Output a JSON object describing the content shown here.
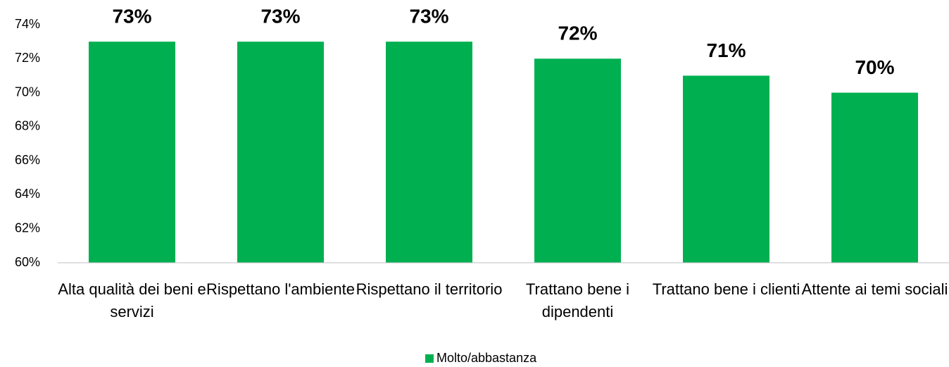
{
  "chart_data": {
    "type": "bar",
    "categories": [
      "Alta qualità dei beni e servizi",
      "Rispettano l'ambiente",
      "Rispettano il territorio",
      "Trattano bene i dipendenti",
      "Trattano bene i clienti",
      "Attente ai temi sociali"
    ],
    "series": [
      {
        "name": "Molto/abbastanza",
        "color": "#00b050",
        "values": [
          73,
          73,
          73,
          72,
          71,
          70
        ],
        "value_labels": [
          "73%",
          "73%",
          "73%",
          "72%",
          "71%",
          "70%"
        ]
      }
    ],
    "ylim": [
      60,
      74
    ],
    "yticks": [
      {
        "value": 60,
        "label": "60%"
      },
      {
        "value": 62,
        "label": "62%"
      },
      {
        "value": 64,
        "label": "64%"
      },
      {
        "value": 66,
        "label": "66%"
      },
      {
        "value": 68,
        "label": "68%"
      },
      {
        "value": 70,
        "label": "70%"
      },
      {
        "value": 72,
        "label": "72%"
      },
      {
        "value": 74,
        "label": "74%"
      }
    ],
    "legend": "bottom"
  }
}
